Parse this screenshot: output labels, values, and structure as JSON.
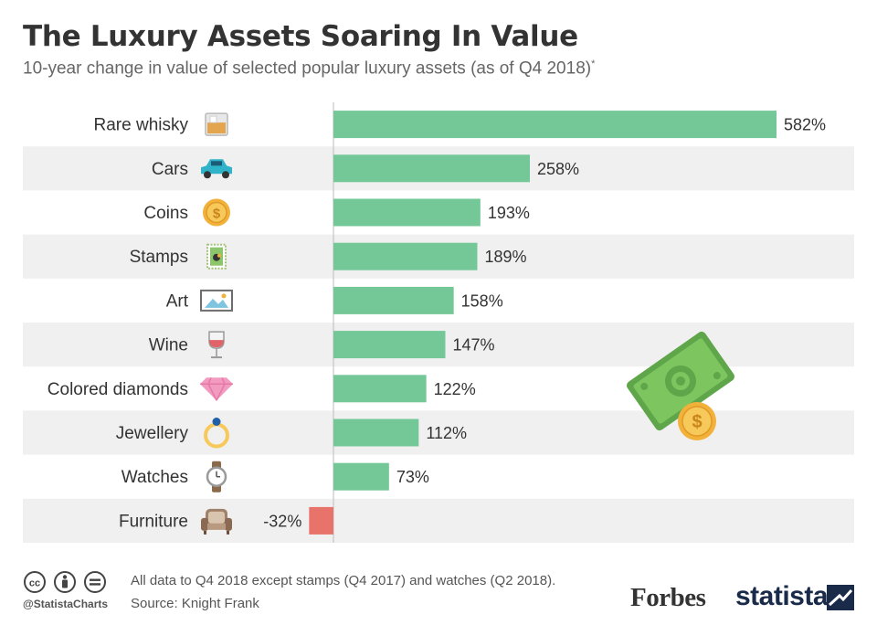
{
  "header": {
    "title": "The Luxury Assets Soaring In Value",
    "subtitle": "10-year change in value of selected popular luxury assets (as of Q4 2018)",
    "subtitle_mark": "*"
  },
  "chart_data": {
    "type": "bar",
    "orientation": "horizontal",
    "categories": [
      "Rare whisky",
      "Cars",
      "Coins",
      "Stamps",
      "Art",
      "Wine",
      "Colored diamonds",
      "Jewellery",
      "Watches",
      "Furniture"
    ],
    "values": [
      582,
      258,
      193,
      189,
      158,
      147,
      122,
      112,
      73,
      -32
    ],
    "value_labels": [
      "582%",
      "258%",
      "193%",
      "189%",
      "158%",
      "147%",
      "122%",
      "112%",
      "73%",
      "-32%"
    ],
    "icons": [
      "whisky-glass-icon",
      "car-icon",
      "coin-icon",
      "stamp-icon",
      "picture-frame-icon",
      "wine-glass-icon",
      "diamond-icon",
      "ring-icon",
      "wristwatch-icon",
      "armchair-icon"
    ],
    "unit": "%",
    "positive_color": "#74c898",
    "negative_color": "#e8736a",
    "stripe_color": "#f0f0f0",
    "grid": false
  },
  "decoration": {
    "icon": "money-banknote-coin-icon"
  },
  "footer": {
    "note": "All data to Q4 2018 except stamps (Q4 2017) and watches (Q2 2018).",
    "source": "Source: Knight Frank",
    "handle": "@StatistaCharts",
    "cc_icons": [
      "cc-icon",
      "by-icon",
      "nd-icon"
    ],
    "brand_forbes": "Forbes",
    "brand_statista": "statista"
  }
}
